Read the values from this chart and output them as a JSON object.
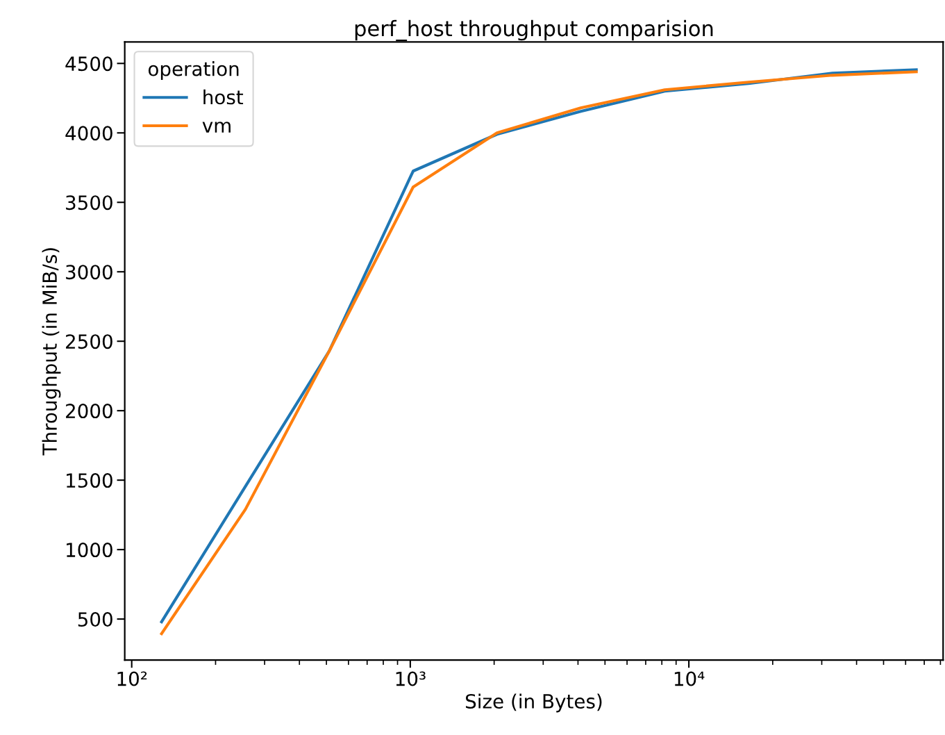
{
  "chart_data": {
    "type": "line",
    "title": "perf_host throughput comparision",
    "xlabel": "Size (in Bytes)",
    "ylabel": "Throughput (in MiB/s)",
    "legend_title": "operation",
    "x": [
      128,
      256,
      512,
      1024,
      2048,
      4096,
      8192,
      16384,
      32768,
      65536
    ],
    "series": [
      {
        "name": "host",
        "color": "#1f77b4",
        "values": [
          480,
          1455,
          2430,
          3725,
          3990,
          4155,
          4300,
          4355,
          4430,
          4455
        ]
      },
      {
        "name": "vm",
        "color": "#ff7f0e",
        "values": [
          395,
          1290,
          2430,
          3610,
          4000,
          4180,
          4310,
          4365,
          4415,
          4440
        ]
      }
    ],
    "log": "x",
    "xlim": [
      94.4,
      81800
    ],
    "ylim": [
      205,
      4655
    ],
    "xticks": [
      {
        "value": 100,
        "label": "10²"
      },
      {
        "value": 1000,
        "label": "10³"
      },
      {
        "value": 10000,
        "label": "10⁴"
      }
    ],
    "yticks": [
      500,
      1000,
      1500,
      2000,
      2500,
      3000,
      3500,
      4000,
      4500
    ],
    "grid": false,
    "legend": "top left",
    "marker": "none",
    "line_style": "solid"
  }
}
